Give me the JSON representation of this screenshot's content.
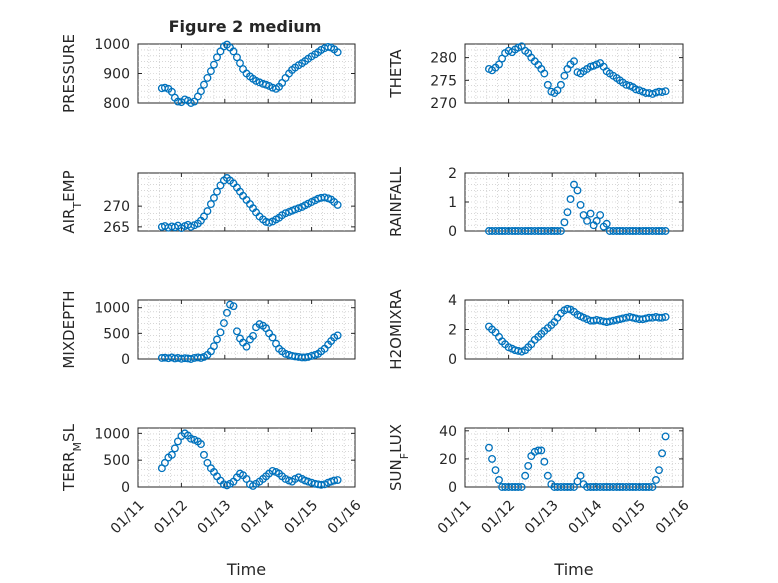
{
  "figure": {
    "title": "Figure 2 medium"
  },
  "chart_data": [
    {
      "type": "scatter",
      "ylabel": "PRESSURE",
      "ylim": [
        800,
        1000
      ],
      "yticks": [
        800,
        900,
        1000
      ],
      "xlim": [
        0,
        5
      ],
      "xticks": [],
      "x": [
        0.55,
        0.62,
        0.7,
        0.78,
        0.85,
        0.92,
        1.0,
        1.08,
        1.15,
        1.22,
        1.3,
        1.38,
        1.45,
        1.52,
        1.6,
        1.68,
        1.75,
        1.82,
        1.9,
        1.98,
        2.05,
        2.12,
        2.2,
        2.28,
        2.35,
        2.42,
        2.5,
        2.58,
        2.65,
        2.72,
        2.8,
        2.88,
        2.95,
        3.02,
        3.1,
        3.18,
        3.25,
        3.32,
        3.4,
        3.48,
        3.55,
        3.62,
        3.7,
        3.78,
        3.85,
        3.92,
        4.0,
        4.08,
        4.15,
        4.22,
        4.3,
        4.38,
        4.45,
        4.52,
        4.6
      ],
      "y": [
        850,
        852,
        848,
        838,
        818,
        805,
        803,
        812,
        808,
        800,
        805,
        822,
        840,
        862,
        885,
        908,
        930,
        955,
        975,
        992,
        998,
        988,
        975,
        955,
        935,
        915,
        900,
        890,
        882,
        875,
        870,
        865,
        862,
        858,
        852,
        848,
        855,
        868,
        885,
        900,
        912,
        920,
        928,
        935,
        942,
        950,
        958,
        965,
        972,
        980,
        986,
        990,
        988,
        982,
        972
      ]
    },
    {
      "type": "scatter",
      "ylabel": "THETA",
      "ylim": [
        270,
        283
      ],
      "yticks": [
        270,
        275,
        280
      ],
      "xlim": [
        0,
        5
      ],
      "xticks": [],
      "x": [
        0.55,
        0.62,
        0.7,
        0.78,
        0.85,
        0.92,
        1.0,
        1.08,
        1.15,
        1.22,
        1.3,
        1.38,
        1.45,
        1.52,
        1.6,
        1.68,
        1.75,
        1.82,
        1.9,
        1.98,
        2.05,
        2.12,
        2.2,
        2.28,
        2.35,
        2.42,
        2.5,
        2.58,
        2.65,
        2.72,
        2.8,
        2.88,
        2.95,
        3.02,
        3.1,
        3.18,
        3.25,
        3.32,
        3.4,
        3.48,
        3.55,
        3.62,
        3.7,
        3.78,
        3.85,
        3.92,
        4.0,
        4.08,
        4.15,
        4.22,
        4.3,
        4.38,
        4.45,
        4.52,
        4.6
      ],
      "y": [
        277.5,
        277.2,
        277.8,
        278.5,
        279.8,
        281,
        281.5,
        281.2,
        281.8,
        282.2,
        282.5,
        281.5,
        281,
        280,
        279.2,
        278.4,
        277.5,
        276.5,
        274,
        272.5,
        272.2,
        272.8,
        274,
        276,
        277.5,
        278.5,
        279.2,
        276.8,
        276.5,
        277,
        277.5,
        278,
        278.2,
        278.5,
        278.8,
        278,
        277,
        276.5,
        276,
        275.5,
        275,
        274.5,
        274,
        273.8,
        273.5,
        273,
        272.8,
        272.5,
        272.2,
        272.2,
        272,
        272.3,
        272.5,
        272.4,
        272.6
      ]
    },
    {
      "type": "scatter",
      "ylabel": "AIR_TEMP",
      "ylim": [
        264,
        278
      ],
      "yticks": [
        265,
        270
      ],
      "xlim": [
        0,
        5
      ],
      "xticks": [],
      "x": [
        0.55,
        0.62,
        0.7,
        0.78,
        0.85,
        0.92,
        1.0,
        1.08,
        1.15,
        1.22,
        1.3,
        1.38,
        1.45,
        1.52,
        1.6,
        1.68,
        1.75,
        1.82,
        1.9,
        1.98,
        2.05,
        2.12,
        2.2,
        2.28,
        2.35,
        2.42,
        2.5,
        2.58,
        2.65,
        2.72,
        2.8,
        2.88,
        2.95,
        3.02,
        3.1,
        3.18,
        3.25,
        3.32,
        3.4,
        3.48,
        3.55,
        3.62,
        3.7,
        3.78,
        3.85,
        3.92,
        4.0,
        4.08,
        4.15,
        4.22,
        4.3,
        4.38,
        4.45,
        4.52,
        4.6
      ],
      "y": [
        265,
        265.2,
        264.8,
        265.1,
        264.9,
        265.3,
        264.7,
        265.2,
        265.5,
        265,
        265.4,
        265.8,
        266.5,
        267.5,
        268.8,
        270.5,
        272,
        273.5,
        275,
        276.2,
        276.8,
        276.2,
        275.5,
        274.5,
        273.5,
        272.5,
        271.5,
        270.5,
        269.5,
        268.5,
        267.5,
        266.8,
        266.2,
        266,
        266.3,
        266.8,
        267.2,
        267.8,
        268.3,
        268.6,
        268.9,
        269.2,
        269.5,
        269.8,
        270.2,
        270.6,
        271,
        271.4,
        271.8,
        272,
        272.1,
        271.9,
        271.6,
        271,
        270.3
      ]
    },
    {
      "type": "scatter",
      "ylabel": "RAINFALL",
      "ylim": [
        0,
        2
      ],
      "yticks": [
        0,
        1,
        2
      ],
      "xlim": [
        0,
        5
      ],
      "xticks": [],
      "x": [
        0.55,
        0.62,
        0.7,
        0.78,
        0.85,
        0.92,
        1.0,
        1.08,
        1.15,
        1.22,
        1.3,
        1.38,
        1.45,
        1.52,
        1.6,
        1.68,
        1.75,
        1.82,
        1.9,
        1.98,
        2.05,
        2.12,
        2.2,
        2.28,
        2.35,
        2.42,
        2.5,
        2.58,
        2.65,
        2.72,
        2.8,
        2.88,
        2.95,
        3.02,
        3.1,
        3.18,
        3.25,
        3.32,
        3.4,
        3.48,
        3.55,
        3.62,
        3.7,
        3.78,
        3.85,
        3.92,
        4.0,
        4.08,
        4.15,
        4.22,
        4.3,
        4.38,
        4.45,
        4.52,
        4.6
      ],
      "y": [
        0,
        0,
        0,
        0,
        0,
        0,
        0,
        0,
        0,
        0,
        0,
        0,
        0,
        0,
        0,
        0,
        0,
        0,
        0,
        0,
        0,
        0,
        0,
        0.3,
        0.65,
        1.1,
        1.6,
        1.4,
        0.9,
        0.55,
        0.35,
        0.6,
        0.2,
        0.35,
        0.55,
        0.15,
        0.25,
        0,
        0,
        0,
        0,
        0,
        0,
        0,
        0,
        0,
        0,
        0,
        0,
        0,
        0,
        0,
        0,
        0,
        0
      ]
    },
    {
      "type": "scatter",
      "ylabel": "MIXDEPTH",
      "ylim": [
        0,
        1150
      ],
      "yticks": [
        0,
        500,
        1000
      ],
      "xlim": [
        0,
        5
      ],
      "xticks": [],
      "x": [
        0.55,
        0.62,
        0.7,
        0.78,
        0.85,
        0.92,
        1.0,
        1.08,
        1.15,
        1.22,
        1.3,
        1.38,
        1.45,
        1.52,
        1.6,
        1.68,
        1.75,
        1.82,
        1.9,
        1.98,
        2.05,
        2.12,
        2.2,
        2.28,
        2.35,
        2.42,
        2.5,
        2.58,
        2.65,
        2.72,
        2.8,
        2.88,
        2.95,
        3.02,
        3.1,
        3.18,
        3.25,
        3.32,
        3.4,
        3.48,
        3.55,
        3.62,
        3.7,
        3.78,
        3.85,
        3.92,
        4.0,
        4.08,
        4.15,
        4.22,
        4.3,
        4.38,
        4.45,
        4.52,
        4.6
      ],
      "y": [
        20,
        25,
        15,
        30,
        10,
        20,
        5,
        15,
        10,
        0,
        20,
        30,
        20,
        40,
        80,
        150,
        250,
        380,
        520,
        700,
        900,
        1060,
        1030,
        540,
        400,
        320,
        240,
        380,
        450,
        620,
        680,
        650,
        600,
        500,
        420,
        300,
        200,
        150,
        100,
        80,
        60,
        50,
        40,
        30,
        30,
        40,
        60,
        80,
        100,
        150,
        200,
        280,
        350,
        420,
        460
      ]
    },
    {
      "type": "scatter",
      "ylabel": "H2OMIXRA",
      "ylim": [
        0,
        4
      ],
      "yticks": [
        0,
        2,
        4
      ],
      "xlim": [
        0,
        5
      ],
      "xticks": [],
      "x": [
        0.55,
        0.62,
        0.7,
        0.78,
        0.85,
        0.92,
        1.0,
        1.08,
        1.15,
        1.22,
        1.3,
        1.38,
        1.45,
        1.52,
        1.6,
        1.68,
        1.75,
        1.82,
        1.9,
        1.98,
        2.05,
        2.12,
        2.2,
        2.28,
        2.35,
        2.42,
        2.5,
        2.58,
        2.65,
        2.72,
        2.8,
        2.88,
        2.95,
        3.02,
        3.1,
        3.18,
        3.25,
        3.32,
        3.4,
        3.48,
        3.55,
        3.62,
        3.7,
        3.78,
        3.85,
        3.92,
        4.0,
        4.08,
        4.15,
        4.22,
        4.3,
        4.38,
        4.45,
        4.52,
        4.6
      ],
      "y": [
        2.2,
        2.0,
        1.8,
        1.5,
        1.2,
        1.0,
        0.8,
        0.7,
        0.6,
        0.55,
        0.5,
        0.6,
        0.8,
        1.0,
        1.3,
        1.5,
        1.7,
        1.9,
        2.1,
        2.3,
        2.5,
        2.8,
        3.1,
        3.3,
        3.4,
        3.35,
        3.2,
        3.0,
        2.9,
        2.8,
        2.7,
        2.6,
        2.6,
        2.65,
        2.6,
        2.55,
        2.5,
        2.55,
        2.6,
        2.65,
        2.7,
        2.75,
        2.8,
        2.85,
        2.8,
        2.75,
        2.7,
        2.7,
        2.75,
        2.8,
        2.8,
        2.85,
        2.8,
        2.8,
        2.85
      ]
    },
    {
      "type": "scatter",
      "ylabel": "TERR_MSL",
      "ylim": [
        0,
        1100
      ],
      "yticks": [
        0,
        500,
        1000
      ],
      "xlim": [
        0,
        5
      ],
      "xticks": [
        0,
        1,
        2,
        3,
        4,
        5
      ],
      "xticklabels": [
        "01/11",
        "01/12",
        "01/13",
        "01/14",
        "01/15",
        "01/16"
      ],
      "xlabel": "Time",
      "x": [
        0.55,
        0.62,
        0.7,
        0.78,
        0.85,
        0.92,
        1.0,
        1.08,
        1.15,
        1.22,
        1.3,
        1.38,
        1.45,
        1.52,
        1.6,
        1.68,
        1.75,
        1.82,
        1.9,
        1.98,
        2.05,
        2.12,
        2.2,
        2.28,
        2.35,
        2.42,
        2.5,
        2.58,
        2.65,
        2.72,
        2.8,
        2.88,
        2.95,
        3.02,
        3.1,
        3.18,
        3.25,
        3.32,
        3.4,
        3.48,
        3.55,
        3.62,
        3.7,
        3.78,
        3.85,
        3.92,
        4.0,
        4.08,
        4.15,
        4.22,
        4.3,
        4.38,
        4.45,
        4.52,
        4.6
      ],
      "y": [
        350,
        450,
        550,
        600,
        720,
        850,
        950,
        1000,
        960,
        900,
        880,
        850,
        800,
        600,
        450,
        350,
        280,
        200,
        120,
        50,
        30,
        60,
        100,
        180,
        250,
        220,
        150,
        50,
        20,
        60,
        100,
        150,
        200,
        250,
        300,
        280,
        250,
        200,
        150,
        120,
        100,
        150,
        180,
        150,
        120,
        100,
        80,
        60,
        50,
        40,
        50,
        80,
        100,
        120,
        130
      ]
    },
    {
      "type": "scatter",
      "ylabel": "SUN_FLUX",
      "ylim": [
        0,
        42
      ],
      "yticks": [
        0,
        20,
        40
      ],
      "xlim": [
        0,
        5
      ],
      "xticks": [
        0,
        1,
        2,
        3,
        4,
        5
      ],
      "xticklabels": [
        "01/11",
        "01/12",
        "01/13",
        "01/14",
        "01/15",
        "01/16"
      ],
      "xlabel": "Time",
      "x": [
        0.55,
        0.62,
        0.7,
        0.78,
        0.85,
        0.92,
        1.0,
        1.08,
        1.15,
        1.22,
        1.3,
        1.38,
        1.45,
        1.52,
        1.6,
        1.68,
        1.75,
        1.82,
        1.9,
        1.98,
        2.05,
        2.12,
        2.2,
        2.28,
        2.35,
        2.42,
        2.5,
        2.58,
        2.65,
        2.72,
        2.8,
        2.88,
        2.95,
        3.02,
        3.1,
        3.18,
        3.25,
        3.32,
        3.4,
        3.48,
        3.55,
        3.62,
        3.7,
        3.78,
        3.85,
        3.92,
        4.0,
        4.08,
        4.15,
        4.22,
        4.3,
        4.38,
        4.45,
        4.52,
        4.6
      ],
      "y": [
        28,
        20,
        12,
        5,
        0,
        0,
        0,
        0,
        0,
        0,
        0,
        8,
        15,
        22,
        25,
        26,
        26,
        18,
        8,
        2,
        0,
        0,
        0,
        0,
        0,
        0,
        0,
        4,
        8,
        2,
        0,
        0,
        0,
        0,
        0,
        0,
        0,
        0,
        0,
        0,
        0,
        0,
        0,
        0,
        0,
        0,
        0,
        0,
        0,
        0,
        0,
        5,
        12,
        24,
        36
      ]
    }
  ]
}
